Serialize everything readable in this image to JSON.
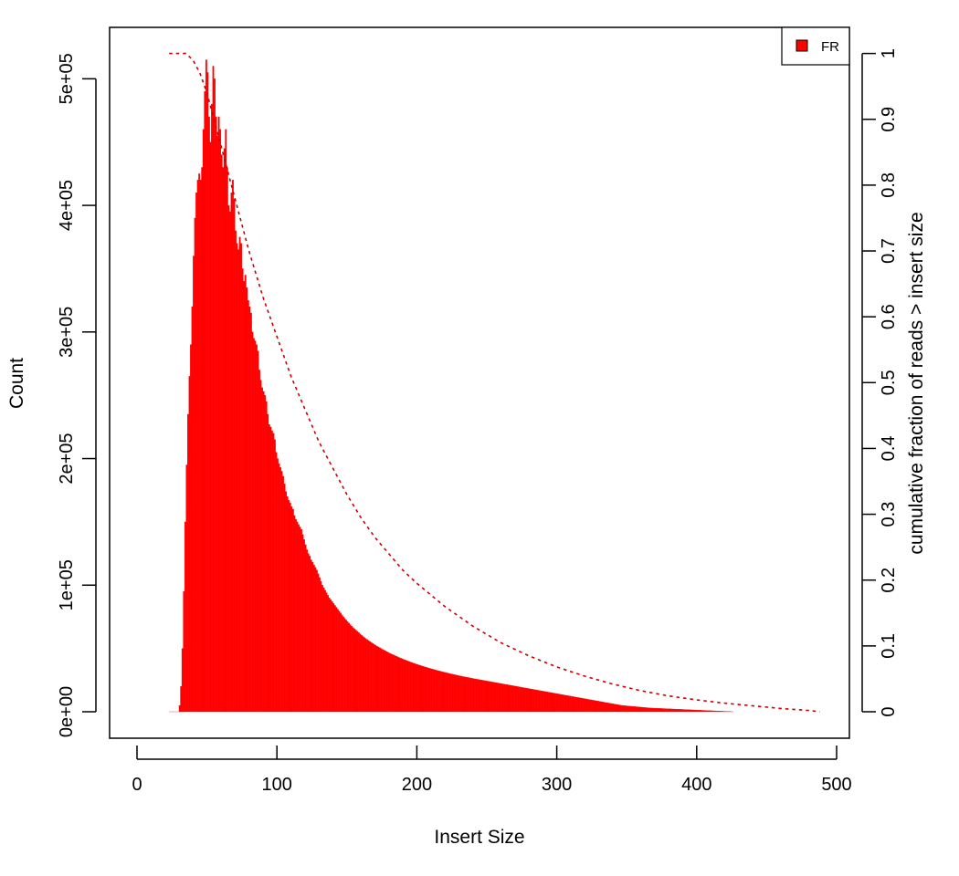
{
  "chart_data": {
    "type": "bar",
    "title": "",
    "xlabel": "Insert Size",
    "ylabel": "Count",
    "y2label": "cumulative fraction of reads > insert size",
    "xlim": [
      0,
      500
    ],
    "ylim": [
      0,
      520000
    ],
    "y2lim": [
      0,
      1
    ],
    "x_ticks": [
      0,
      100,
      200,
      300,
      400,
      500
    ],
    "x_tick_labels": [
      "0",
      "100",
      "200",
      "300",
      "400",
      "500"
    ],
    "y_ticks": [
      0,
      100000,
      200000,
      300000,
      400000,
      500000
    ],
    "y_tick_labels": [
      "0e+00",
      "1e+05",
      "2e+05",
      "3e+05",
      "4e+05",
      "5e+05"
    ],
    "y2_ticks": [
      0,
      0.1,
      0.2,
      0.3,
      0.4,
      0.5,
      0.6,
      0.7,
      0.8,
      0.9,
      1
    ],
    "y2_tick_labels": [
      "0",
      "0.1",
      "0.2",
      "0.3",
      "0.4",
      "0.5",
      "0.6",
      "0.7",
      "0.8",
      "0.9",
      "1"
    ],
    "grid": false,
    "legend": {
      "position": "top-right",
      "entries": [
        {
          "label": "FR",
          "color": "#ff0000"
        }
      ]
    },
    "series": [
      {
        "name": "FR",
        "kind": "histogram",
        "color": "#ff0000",
        "x_start": 23,
        "x_step": 1,
        "values": [
          0,
          0,
          0,
          0,
          0,
          0,
          0,
          5000,
          20000,
          50000,
          95000,
          150000,
          195000,
          235000,
          265000,
          290000,
          320000,
          360000,
          390000,
          410000,
          420000,
          425000,
          420000,
          430000,
          460000,
          490000,
          515000,
          505000,
          470000,
          450000,
          480000,
          510000,
          500000,
          470000,
          455000,
          470000,
          460000,
          440000,
          430000,
          445000,
          460000,
          430000,
          400000,
          395000,
          410000,
          420000,
          405000,
          380000,
          370000,
          365000,
          375000,
          370000,
          350000,
          340000,
          345000,
          335000,
          325000,
          320000,
          315000,
          300000,
          295000,
          293000,
          290000,
          285000,
          270000,
          262000,
          256000,
          253000,
          250000,
          245000,
          235000,
          227000,
          225000,
          222000,
          220000,
          215000,
          205000,
          200000,
          196000,
          193000,
          190000,
          186000,
          180000,
          174000,
          170000,
          167000,
          165000,
          162000,
          160000,
          155000,
          152000,
          150000,
          148000,
          146000,
          144000,
          140000,
          136000,
          132000,
          128000,
          125000,
          123000,
          120000,
          118000,
          116000,
          114000,
          112000,
          109000,
          106000,
          103000,
          100000,
          98000,
          96000,
          94000,
          92000,
          90000,
          88500,
          87000,
          85500,
          84000,
          82500,
          81000,
          79500,
          78000,
          76500,
          75000,
          73800,
          72500,
          71300,
          70000,
          68800,
          67600,
          66500,
          65500,
          64500,
          63500,
          62500,
          61500,
          60500,
          59500,
          58700,
          57800,
          57000,
          56300,
          55500,
          54800,
          54000,
          53300,
          52500,
          51800,
          51200,
          50600,
          49900,
          49300,
          48700,
          48100,
          47500,
          46900,
          46400,
          45800,
          45300,
          44800,
          44300,
          43800,
          43300,
          42800,
          42300,
          41900,
          41400,
          41000,
          40500,
          40100,
          39700,
          39300,
          38900,
          38500,
          38100,
          37700,
          37300,
          36900,
          36600,
          36200,
          35900,
          35500,
          35200,
          34900,
          34500,
          34200,
          33900,
          33600,
          33300,
          33000,
          32700,
          32400,
          32100,
          31800,
          31500,
          31200,
          31000,
          30700,
          30400,
          30200,
          29900,
          29700,
          29400,
          29200,
          28900,
          28700,
          28400,
          28200,
          28000,
          27700,
          27500,
          27300,
          27100,
          26800,
          26600,
          26400,
          26200,
          26000,
          25800,
          25600,
          25400,
          25200,
          25000,
          24800,
          24600,
          24400,
          24200,
          24000,
          23800,
          23600,
          23400,
          23200,
          23000,
          22800,
          22600,
          22400,
          22200,
          22000,
          21800,
          21600,
          21400,
          21200,
          21000,
          20800,
          20600,
          20400,
          20200,
          20000,
          19800,
          19600,
          19400,
          19200,
          19000,
          18800,
          18600,
          18400,
          18200,
          18000,
          17800,
          17600,
          17400,
          17200,
          17000,
          16800,
          16600,
          16400,
          16200,
          16000,
          15800,
          15600,
          15400,
          15200,
          15000,
          14800,
          14600,
          14400,
          14200,
          14000,
          13800,
          13600,
          13400,
          13200,
          13000,
          12800,
          12600,
          12400,
          12200,
          12000,
          11800,
          11600,
          11400,
          11200,
          11000,
          10800,
          10600,
          10400,
          10200,
          10000,
          9800,
          9600,
          9400,
          9200,
          9000,
          8800,
          8600,
          8400,
          8200,
          8000,
          7800,
          7600,
          7400,
          7200,
          7000,
          6800,
          6600,
          6400,
          6200,
          6000,
          5800,
          5600,
          5400,
          5200,
          5000,
          4900,
          4800,
          4700,
          4600,
          4500,
          4400,
          4300,
          4200,
          4100,
          4000,
          3900,
          3800,
          3700,
          3600,
          3500,
          3400,
          3300,
          3200,
          3100,
          3000,
          2950,
          2900,
          2850,
          2800,
          2750,
          2700,
          2650,
          2600,
          2550,
          2500,
          2450,
          2400,
          2350,
          2300,
          2250,
          2200,
          2150,
          2100,
          2050,
          2000,
          1950,
          1900,
          1850,
          1800,
          1750,
          1700,
          1650,
          1600,
          1550,
          1500,
          1450,
          1400,
          1350,
          1300,
          1250,
          1200,
          1150,
          1100,
          1050,
          1000,
          950,
          900,
          850,
          800,
          750,
          700,
          650,
          600,
          550,
          500,
          450,
          400,
          350,
          300,
          250,
          200,
          150,
          100,
          50
        ]
      },
      {
        "name": "cumulative fraction of reads > insert size",
        "kind": "line",
        "axis": "right",
        "color": "#cc0000",
        "line_style": "dashed",
        "x": [
          23,
          30,
          35,
          40,
          45,
          50,
          55,
          60,
          70,
          80,
          90,
          100,
          110,
          120,
          130,
          140,
          150,
          160,
          170,
          180,
          190,
          200,
          220,
          240,
          260,
          280,
          300,
          320,
          340,
          360,
          380,
          400,
          420,
          440,
          460,
          480,
          488
        ],
        "y": [
          1,
          1,
          1,
          0.99,
          0.97,
          0.94,
          0.9,
          0.86,
          0.78,
          0.7,
          0.63,
          0.57,
          0.51,
          0.46,
          0.41,
          0.37,
          0.33,
          0.295,
          0.265,
          0.24,
          0.215,
          0.195,
          0.16,
          0.13,
          0.105,
          0.085,
          0.068,
          0.054,
          0.042,
          0.032,
          0.024,
          0.018,
          0.013,
          0.009,
          0.005,
          0.002,
          0
        ]
      }
    ]
  }
}
